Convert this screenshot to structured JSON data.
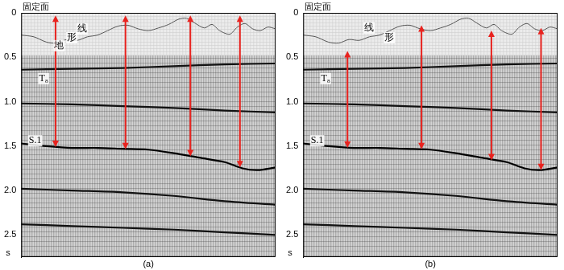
{
  "chart_data": [
    {
      "type": "line",
      "title": "(a)",
      "top_label": "固定面",
      "y_label": "s",
      "xlim": [
        0,
        100
      ],
      "ylim": [
        2.75,
        0
      ],
      "yticks": [
        0,
        0.5,
        {
          "value": 1,
          "label": "1.0"
        },
        1.5,
        {
          "value": 2,
          "label": "2.0"
        },
        2.5
      ],
      "tick_labels": "y",
      "grid": false,
      "data_start": 0.48,
      "series": [
        {
          "color": "#555555",
          "x": [
            0,
            5,
            10,
            14,
            18,
            22,
            26,
            30,
            34,
            38,
            42,
            46,
            50,
            54,
            58,
            62,
            65,
            68,
            72,
            75,
            78,
            82,
            85,
            88,
            91,
            94,
            97,
            100
          ],
          "values": [
            0.25,
            0.27,
            0.33,
            0.34,
            0.3,
            0.31,
            0.27,
            0.25,
            0.2,
            0.15,
            0.14,
            0.18,
            0.2,
            0.17,
            0.13,
            0.07,
            0.06,
            0.11,
            0.17,
            0.13,
            0.2,
            0.24,
            0.16,
            0.12,
            0.18,
            0.2,
            0.16,
            0.18
          ]
        },
        {
          "color": "#111111",
          "x": [
            0,
            20,
            40,
            60,
            80,
            100
          ],
          "values": [
            0.64,
            0.63,
            0.62,
            0.6,
            0.58,
            0.57
          ]
        },
        {
          "color": "#111111",
          "x": [
            0,
            20,
            40,
            60,
            80,
            100
          ],
          "values": [
            1.02,
            1.03,
            1.05,
            1.07,
            1.1,
            1.12
          ]
        },
        {
          "color": "#000000",
          "x": [
            0,
            10,
            20,
            30,
            40,
            50,
            60,
            70,
            80,
            87,
            93,
            100
          ],
          "values": [
            1.47,
            1.5,
            1.52,
            1.52,
            1.53,
            1.54,
            1.58,
            1.63,
            1.68,
            1.75,
            1.77,
            1.74
          ]
        },
        {
          "color": "#111111",
          "x": [
            0,
            20,
            40,
            60,
            80,
            100
          ],
          "values": [
            1.98,
            2.0,
            2.02,
            2.06,
            2.12,
            2.16
          ]
        },
        {
          "color": "#111111",
          "x": [
            0,
            20,
            40,
            60,
            80,
            100
          ],
          "values": [
            2.38,
            2.4,
            2.42,
            2.44,
            2.47,
            2.5
          ]
        }
      ],
      "arrows": {
        "color": "#e8231f",
        "x": [
          13.5,
          41,
          66.5,
          86
        ],
        "from": [
          0.03,
          0.03,
          0.03,
          0.03
        ],
        "to": [
          1.51,
          1.535,
          1.615,
          1.74
        ]
      },
      "annotations": [
        {
          "text": "地",
          "x": 13,
          "y": 0.37
        },
        {
          "text": "形",
          "x": 18,
          "y": 0.28
        },
        {
          "text": "线",
          "x": 22,
          "y": 0.18
        },
        {
          "text": "T₈",
          "x": 7,
          "y": 0.74
        },
        {
          "text": "S.1",
          "x": 3,
          "y": 1.44
        }
      ]
    },
    {
      "type": "line",
      "title": "(b)",
      "top_label": "固定面",
      "y_label": "s",
      "xlim": [
        0,
        100
      ],
      "ylim": [
        2.75,
        0
      ],
      "yticks": [
        0,
        0.5,
        {
          "value": 1,
          "label": "1.0"
        },
        1.5,
        {
          "value": 2,
          "label": "2.0"
        },
        2.5
      ],
      "tick_labels": "y",
      "grid": false,
      "data_start": 0.48,
      "series": [
        {
          "color": "#555555",
          "x": [
            0,
            5,
            10,
            14,
            18,
            22,
            26,
            30,
            34,
            38,
            42,
            46,
            50,
            54,
            58,
            62,
            65,
            68,
            72,
            75,
            78,
            82,
            85,
            88,
            91,
            94,
            97,
            100
          ],
          "values": [
            0.25,
            0.27,
            0.33,
            0.34,
            0.3,
            0.31,
            0.27,
            0.25,
            0.2,
            0.15,
            0.14,
            0.18,
            0.2,
            0.17,
            0.13,
            0.07,
            0.06,
            0.11,
            0.17,
            0.13,
            0.2,
            0.24,
            0.16,
            0.12,
            0.18,
            0.2,
            0.16,
            0.18
          ]
        },
        {
          "color": "#111111",
          "x": [
            0,
            20,
            40,
            60,
            80,
            100
          ],
          "values": [
            0.64,
            0.63,
            0.62,
            0.6,
            0.58,
            0.57
          ]
        },
        {
          "color": "#111111",
          "x": [
            0,
            20,
            40,
            60,
            80,
            100
          ],
          "values": [
            1.02,
            1.03,
            1.05,
            1.07,
            1.1,
            1.12
          ]
        },
        {
          "color": "#000000",
          "x": [
            0,
            10,
            20,
            30,
            40,
            50,
            60,
            70,
            80,
            87,
            93,
            100
          ],
          "values": [
            1.47,
            1.5,
            1.52,
            1.52,
            1.53,
            1.54,
            1.58,
            1.63,
            1.68,
            1.75,
            1.77,
            1.74
          ]
        },
        {
          "color": "#111111",
          "x": [
            0,
            20,
            40,
            60,
            80,
            100
          ],
          "values": [
            1.98,
            2.0,
            2.02,
            2.06,
            2.12,
            2.16
          ]
        },
        {
          "color": "#111111",
          "x": [
            0,
            20,
            40,
            60,
            80,
            100
          ],
          "values": [
            2.38,
            2.4,
            2.42,
            2.44,
            2.47,
            2.5
          ]
        }
      ],
      "arrows": {
        "color": "#e8231f",
        "x": [
          17.4,
          46.5,
          74,
          93.5
        ],
        "from": [
          0.43,
          0.14,
          0.2,
          0.17
        ],
        "to": [
          1.52,
          1.535,
          1.66,
          1.77
        ]
      },
      "annotations": [
        {
          "text": "线",
          "x": 24,
          "y": 0.17
        },
        {
          "text": "形",
          "x": 32,
          "y": 0.28
        },
        {
          "text": "T₈",
          "x": 7,
          "y": 0.74
        },
        {
          "text": "S.1",
          "x": 3,
          "y": 1.44
        }
      ]
    }
  ]
}
